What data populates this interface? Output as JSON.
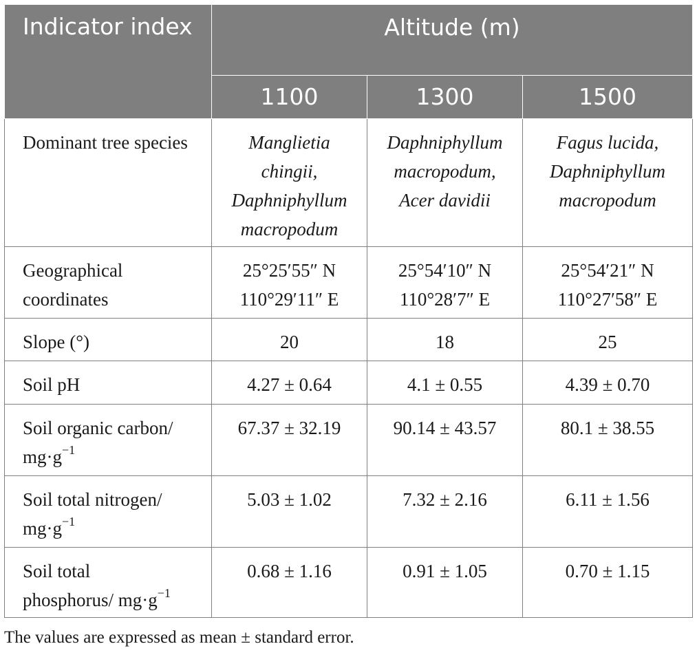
{
  "header": {
    "indicator_label": "Indicator index",
    "altitude_label": "Altitude (m)",
    "altitudes": [
      "1100",
      "1300",
      "1500"
    ]
  },
  "rows": {
    "species": {
      "label": "Dominant tree species",
      "values": [
        [
          "Manglietia",
          "chingii,",
          "Daphniphyllum",
          "macropodum"
        ],
        [
          "Daphniphyllum",
          "macropodum,",
          "Acer davidii"
        ],
        [
          "Fagus lucida,",
          "Daphniphyllum",
          "macropodum"
        ]
      ]
    },
    "coords": {
      "label": "Geographical coordinates",
      "values": [
        [
          "25°25′55″ N",
          "110°29′11″ E"
        ],
        [
          "25°54′10″ N",
          "110°28′7″ E"
        ],
        [
          "25°54′21″ N",
          "110°27′58″ E"
        ]
      ]
    },
    "slope": {
      "label": "Slope (°)",
      "values": [
        "20",
        "18",
        "25"
      ]
    },
    "ph": {
      "label": "Soil pH",
      "values": [
        "4.27 ± 0.64",
        "4.1 ± 0.55",
        "4.39 ± 0.70"
      ]
    },
    "soc": {
      "label": "Soil organic carbon/",
      "unit_base": "mg·g",
      "unit_exp": "−1",
      "values": [
        "67.37 ± 32.19",
        "90.14 ± 43.57",
        "80.1 ± 38.55"
      ]
    },
    "stn": {
      "label": "Soil total nitrogen/",
      "unit_base": "mg·g",
      "unit_exp": "−1",
      "values": [
        "5.03 ± 1.02",
        "7.32 ± 2.16",
        "6.11 ± 1.56"
      ]
    },
    "stp": {
      "label_line1": "Soil total",
      "label_line2": "phosphorus/ mg·g",
      "unit_exp": "−1",
      "values": [
        "0.68 ± 1.16",
        "0.91 ± 1.05",
        "0.70 ± 1.15"
      ]
    }
  },
  "footnote": "The values are expressed as mean ± standard error."
}
